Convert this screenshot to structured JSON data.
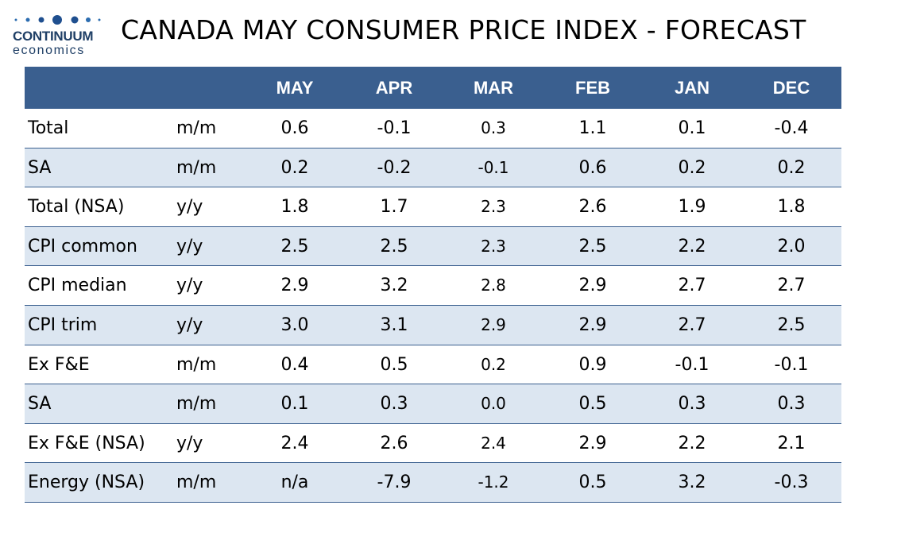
{
  "logo": {
    "line1": "CONTINUUM",
    "line2": "economics"
  },
  "title": "CANADA MAY CONSUMER PRICE INDEX - FORECAST",
  "table": {
    "columns": [
      "MAY",
      "APR",
      "MAR",
      "FEB",
      "JAN",
      "DEC"
    ],
    "rows": [
      [
        "Total",
        "m/m",
        "0.6",
        "-0.1",
        "0.3",
        "1.1",
        "0.1",
        "-0.4"
      ],
      [
        "SA",
        "m/m",
        "0.2",
        "-0.2",
        "-0.1",
        "0.6",
        "0.2",
        "0.2"
      ],
      [
        "Total (NSA)",
        "y/y",
        "1.8",
        "1.7",
        "2.3",
        "2.6",
        "1.9",
        "1.8"
      ],
      [
        "CPI common",
        "y/y",
        "2.5",
        "2.5",
        "2.3",
        "2.5",
        "2.2",
        "2.0"
      ],
      [
        "CPI median",
        "y/y",
        "2.9",
        "3.2",
        "2.8",
        "2.9",
        "2.7",
        "2.7"
      ],
      [
        "CPI trim",
        "y/y",
        "3.0",
        "3.1",
        "2.9",
        "2.9",
        "2.7",
        "2.5"
      ],
      [
        "Ex F&E",
        "m/m",
        "0.4",
        "0.5",
        "0.2",
        "0.9",
        "-0.1",
        "-0.1"
      ],
      [
        "SA",
        "m/m",
        "0.1",
        "0.3",
        "0.0",
        "0.5",
        "0.3",
        "0.3"
      ],
      [
        "Ex F&E (NSA)",
        "y/y",
        "2.4",
        "2.6",
        "2.4",
        "2.9",
        "2.2",
        "2.1"
      ],
      [
        "Energy (NSA)",
        "m/m",
        "n/a",
        "-7.9",
        "-1.2",
        "0.5",
        "3.2",
        "-0.3"
      ]
    ]
  }
}
